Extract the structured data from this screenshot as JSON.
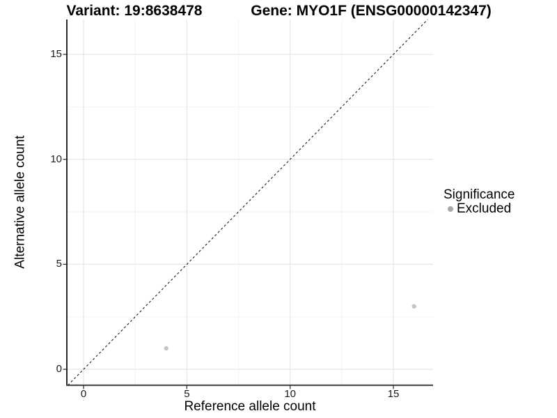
{
  "titles": {
    "variant": "Variant: 19:8638478",
    "gene": "Gene: MYO1F (ENSG00000142347)"
  },
  "legend": {
    "title": "Significance",
    "items": [
      {
        "label": "Excluded",
        "color": "#a9a9a9"
      }
    ]
  },
  "chart_data": {
    "type": "scatter",
    "title_left": "Variant: 19:8638478",
    "title_right": "Gene: MYO1F (ENSG00000142347)",
    "xlabel": "Reference allele count",
    "ylabel": "Alternative allele count",
    "xlim": [
      -0.81,
      16.92
    ],
    "ylim": [
      -0.76,
      16.66
    ],
    "xticks": [
      0,
      5,
      10,
      15
    ],
    "yticks": [
      0,
      5,
      10,
      15
    ],
    "minor_xticks": [
      2.5,
      7.5,
      12.5
    ],
    "minor_yticks": [
      2.5,
      7.5,
      12.5
    ],
    "grid": "major and minor gridlines on, white background",
    "legend_position": "right",
    "legend_title": "Significance",
    "series": [
      {
        "name": "Excluded",
        "color": "#c5c5c5",
        "points": [
          {
            "x": 4,
            "y": 1
          },
          {
            "x": 16,
            "y": 3
          }
        ]
      }
    ],
    "reference_line": {
      "type": "identity y=x",
      "style": "dashed",
      "color": "#1a1a1a"
    }
  },
  "colors": {
    "background": "#ffffff",
    "grid_major": "#e6e6e6",
    "grid_minor": "#f2f2f2",
    "axis_line_left": "#000000",
    "axis_line_bottom": "#4f4f4f",
    "tick_mark": "#333333",
    "text": "#000000"
  }
}
